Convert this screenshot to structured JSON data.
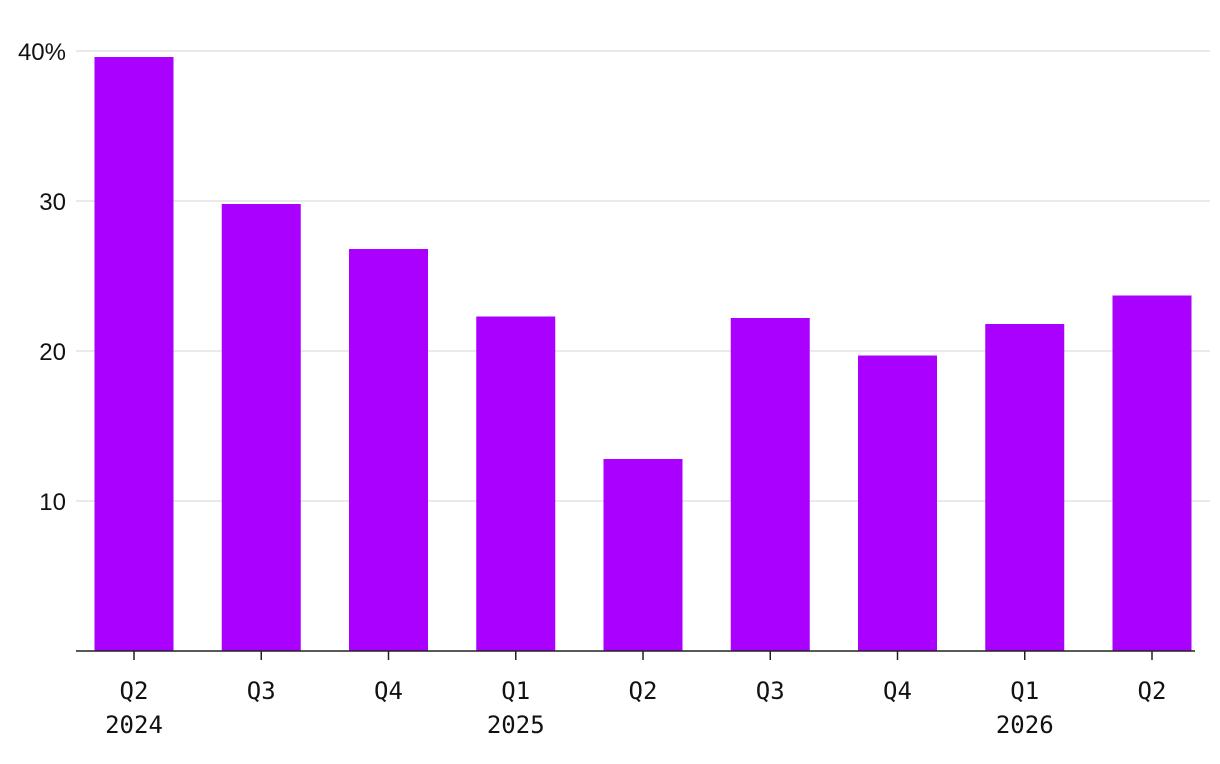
{
  "chart_data": {
    "type": "bar",
    "title": "",
    "xlabel": "",
    "ylabel": "",
    "categories": [
      "Q2",
      "Q3",
      "Q4",
      "Q1",
      "Q2",
      "Q3",
      "Q4",
      "Q1",
      "Q2"
    ],
    "groups": [
      {
        "label": "2024",
        "index": 0
      },
      {
        "label": "2025",
        "index": 3
      },
      {
        "label": "2026",
        "index": 7
      }
    ],
    "values": [
      39.6,
      29.8,
      26.8,
      22.3,
      12.8,
      22.2,
      19.7,
      21.8,
      23.7
    ],
    "ylim": [
      0,
      40
    ],
    "yticks": [
      {
        "value": 10,
        "label": "10"
      },
      {
        "value": 20,
        "label": "20"
      },
      {
        "value": 30,
        "label": "30"
      },
      {
        "value": 40,
        "label": "40%"
      }
    ],
    "grid": true,
    "legend": "none",
    "colors": {
      "bar": "#aa00ff"
    }
  }
}
